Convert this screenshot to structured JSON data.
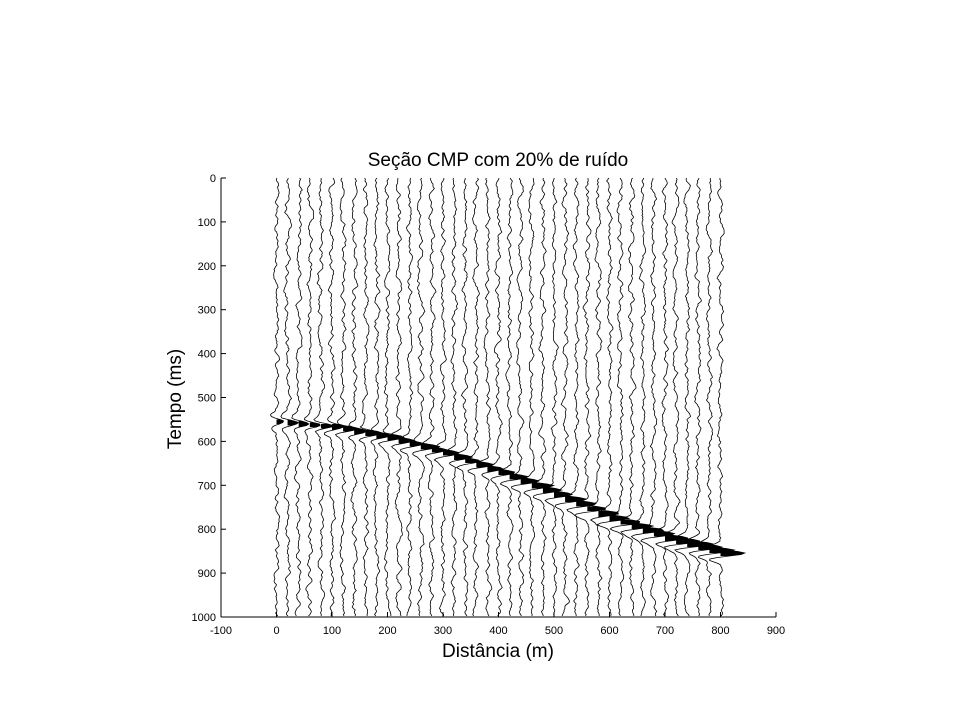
{
  "chart_data": {
    "type": "line",
    "title": "Seção CMP com 20% de ruído",
    "xlabel": "Distância (m)",
    "ylabel": "Tempo (ms)",
    "xlim": [
      -100,
      900
    ],
    "ylim": [
      1000,
      0
    ],
    "y_reversed": true,
    "x_ticks": [
      "-100",
      "0",
      "100",
      "200",
      "300",
      "400",
      "500",
      "600",
      "700",
      "800",
      "900"
    ],
    "y_ticks": [
      "0",
      "100",
      "200",
      "300",
      "400",
      "500",
      "600",
      "700",
      "800",
      "900",
      "1000"
    ],
    "grid": false,
    "legend": "none",
    "trace_offsets_m": [
      0,
      20,
      40,
      60,
      80,
      100,
      120,
      140,
      160,
      180,
      200,
      220,
      240,
      260,
      280,
      300,
      320,
      340,
      360,
      380,
      400,
      420,
      440,
      460,
      480,
      500,
      520,
      540,
      560,
      580,
      600,
      620,
      640,
      660,
      680,
      700,
      720,
      740,
      760,
      780,
      800
    ],
    "reflection_event": {
      "x": [
        0,
        100,
        200,
        300,
        400,
        500,
        600,
        700,
        800
      ],
      "y": [
        555,
        567,
        591,
        627,
        671,
        721,
        775,
        820,
        855
      ]
    },
    "noise_percent": 20
  }
}
